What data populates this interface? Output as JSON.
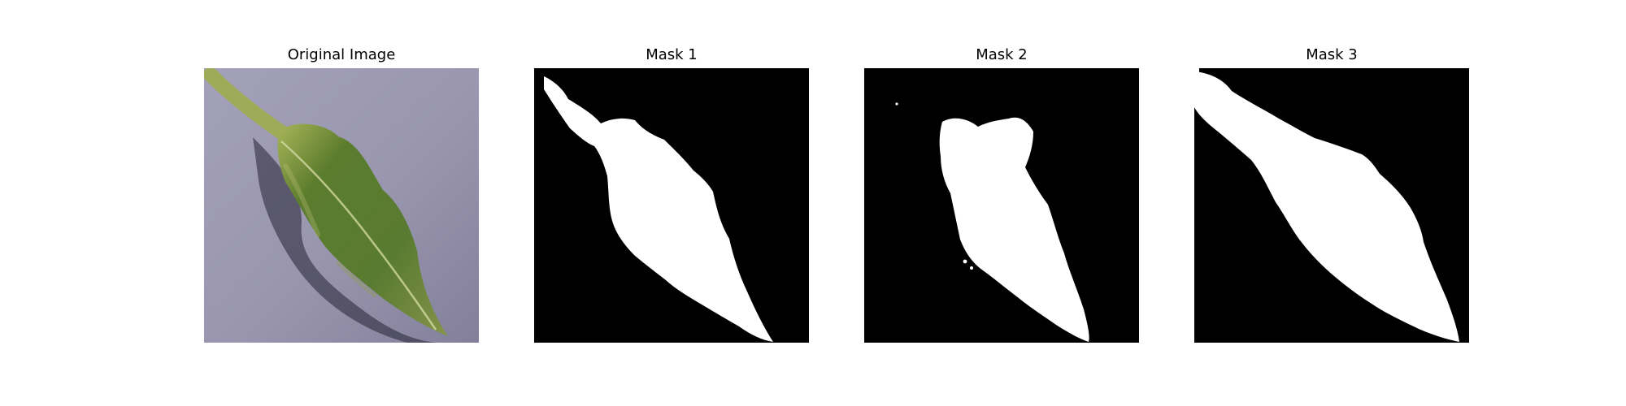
{
  "figure": {
    "panels": [
      {
        "title": "Original Image"
      },
      {
        "title": "Mask 1"
      },
      {
        "title": "Mask 2"
      },
      {
        "title": "Mask 3"
      }
    ]
  },
  "colors": {
    "background": "#ffffff",
    "mask_background": "#000000",
    "mask_foreground": "#ffffff",
    "leaf_green": "#5f8a2f",
    "surface_gray": "#8e8aa6"
  }
}
